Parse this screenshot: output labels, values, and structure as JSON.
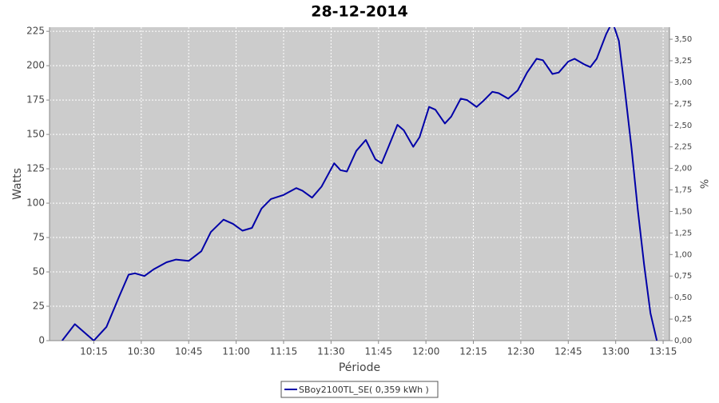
{
  "chart_data": {
    "type": "line",
    "title": "28-12-2014",
    "x_label": "Période",
    "y_label": "Watts",
    "y2_label": "%",
    "x": [
      "10:05",
      "10:09",
      "10:15",
      "10:19",
      "10:23",
      "10:26",
      "10:28",
      "10:31",
      "10:34",
      "10:38",
      "10:41",
      "10:45",
      "10:49",
      "10:52",
      "10:56",
      "10:59",
      "11:02",
      "11:05",
      "11:08",
      "11:11",
      "11:15",
      "11:19",
      "11:21",
      "11:24",
      "11:27",
      "11:31",
      "11:33",
      "11:35",
      "11:38",
      "11:41",
      "11:44",
      "11:46",
      "11:48",
      "11:51",
      "11:53",
      "11:56",
      "11:58",
      "12:01",
      "12:03",
      "12:06",
      "12:08",
      "12:11",
      "12:13",
      "12:16",
      "12:18",
      "12:21",
      "12:23",
      "12:26",
      "12:29",
      "12:32",
      "12:35",
      "12:37",
      "12:40",
      "12:42",
      "12:45",
      "12:47",
      "12:50",
      "12:52",
      "12:54",
      "12:57",
      "12:59",
      "13:01",
      "13:03",
      "13:05",
      "13:07",
      "13:09",
      "13:11",
      "13:13"
    ],
    "series": [
      {
        "name": "SBoy2100TL_SE( 0,359 kWh )",
        "color": "#0000a8",
        "values": [
          0,
          12,
          0,
          10,
          32,
          48,
          49,
          47,
          52,
          57,
          59,
          58,
          65,
          79,
          88,
          85,
          80,
          82,
          96,
          103,
          106,
          111,
          109,
          104,
          112,
          129,
          124,
          123,
          138,
          146,
          132,
          129,
          140,
          157,
          153,
          141,
          148,
          170,
          168,
          158,
          163,
          176,
          175,
          170,
          174,
          181,
          180,
          176,
          182,
          195,
          205,
          204,
          194,
          195,
          203,
          205,
          201,
          199,
          205,
          223,
          232,
          218,
          180,
          140,
          95,
          55,
          20,
          0
        ]
      }
    ],
    "xlim": [
      "10:01",
      "13:17"
    ],
    "xticks": [
      "10:15",
      "10:30",
      "10:45",
      "11:00",
      "11:15",
      "11:30",
      "11:45",
      "12:00",
      "12:15",
      "12:30",
      "12:45",
      "13:00",
      "13:15"
    ],
    "ylim": [
      0,
      228
    ],
    "yticks": [
      0,
      25,
      50,
      75,
      100,
      125,
      150,
      175,
      200,
      225
    ],
    "y2lim": [
      0,
      3.64
    ],
    "y2ticks": [
      {
        "value": 0,
        "label": "0,00"
      },
      {
        "value": 0.25,
        "label": "0,25"
      },
      {
        "value": 0.5,
        "label": "0,50"
      },
      {
        "value": 0.75,
        "label": "0,75"
      },
      {
        "value": 1,
        "label": "1,00"
      },
      {
        "value": 1.25,
        "label": "1,25"
      },
      {
        "value": 1.5,
        "label": "1,50"
      },
      {
        "value": 1.75,
        "label": "1,75"
      },
      {
        "value": 2,
        "label": "2,00"
      },
      {
        "value": 2.25,
        "label": "2,25"
      },
      {
        "value": 2.5,
        "label": "2,50"
      },
      {
        "value": 2.75,
        "label": "2,75"
      },
      {
        "value": 3,
        "label": "3,00"
      },
      {
        "value": 3.25,
        "label": "3,25"
      },
      {
        "value": 3.5,
        "label": "3,50"
      }
    ],
    "grid": true,
    "background": "#cccccc",
    "legend": "bottom"
  }
}
